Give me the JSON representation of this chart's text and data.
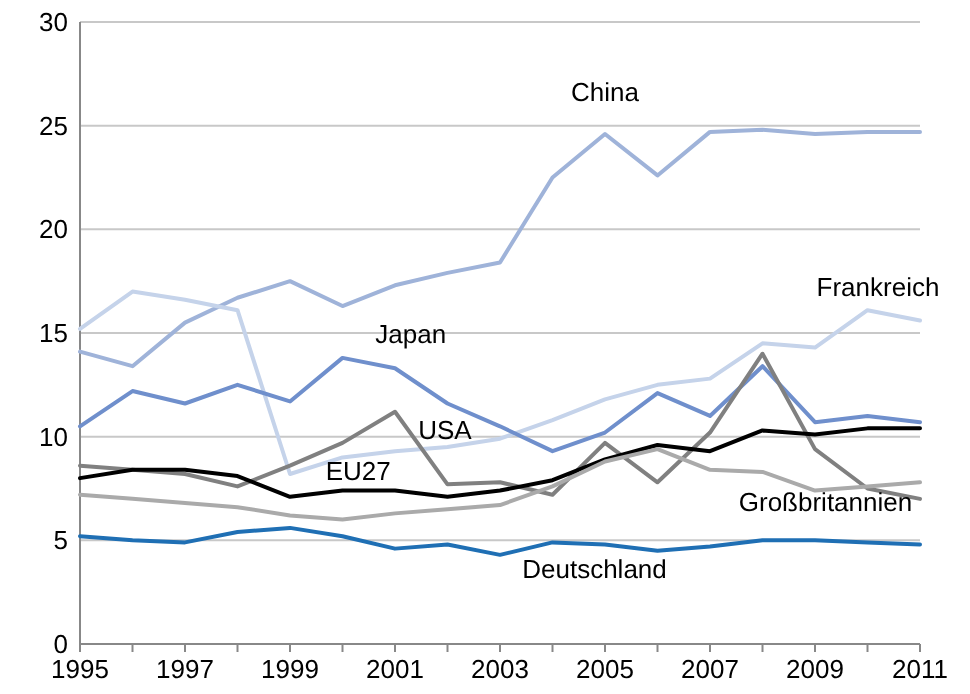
{
  "chart_data": {
    "type": "line",
    "x": [
      1995,
      1996,
      1997,
      1998,
      1999,
      2000,
      2001,
      2002,
      2003,
      2004,
      2005,
      2006,
      2007,
      2008,
      2009,
      2010,
      2011
    ],
    "series": [
      {
        "name": "China",
        "color": "#9fb3d9",
        "values": [
          14.1,
          13.4,
          15.5,
          16.7,
          17.5,
          16.3,
          17.3,
          17.9,
          18.4,
          22.5,
          24.6,
          22.6,
          24.7,
          24.8,
          24.6,
          24.7,
          24.7
        ]
      },
      {
        "name": "Frankreich",
        "color": "#c5d3ea",
        "values": [
          15.2,
          17.0,
          16.6,
          16.1,
          8.2,
          9.0,
          9.3,
          9.5,
          9.9,
          10.8,
          11.8,
          12.5,
          12.8,
          14.5,
          14.3,
          16.1,
          15.6
        ]
      },
      {
        "name": "Japan",
        "color": "#6f8fcc",
        "values": [
          10.5,
          12.2,
          11.6,
          12.5,
          11.7,
          13.8,
          13.3,
          11.6,
          10.5,
          9.3,
          10.2,
          12.1,
          11.0,
          13.4,
          10.7,
          11.0,
          10.7
        ]
      },
      {
        "name": "USA",
        "color": "#808080",
        "values": [
          8.6,
          8.4,
          8.2,
          7.6,
          8.6,
          9.7,
          11.2,
          7.7,
          7.8,
          7.2,
          9.7,
          7.8,
          10.2,
          14.0,
          9.4,
          7.5,
          7.0
        ]
      },
      {
        "name": "EU27",
        "color": "#000000",
        "values": [
          8.0,
          8.4,
          8.4,
          8.1,
          7.1,
          7.4,
          7.4,
          7.1,
          7.4,
          7.9,
          8.9,
          9.6,
          9.3,
          10.3,
          10.1,
          10.4,
          10.4
        ]
      },
      {
        "name": "Großbritannien",
        "color": "#aaaaaa",
        "values": [
          7.2,
          7.0,
          6.8,
          6.6,
          6.2,
          6.0,
          6.3,
          6.5,
          6.7,
          7.6,
          8.8,
          9.4,
          8.4,
          8.3,
          7.4,
          7.6,
          7.8
        ]
      },
      {
        "name": "Deutschland",
        "color": "#1f6fb4",
        "values": [
          5.2,
          5.0,
          4.9,
          5.4,
          5.6,
          5.2,
          4.6,
          4.8,
          4.3,
          4.9,
          4.8,
          4.5,
          4.7,
          5.0,
          5.0,
          4.9,
          4.8
        ]
      }
    ],
    "xlim": [
      1995,
      2011
    ],
    "xticks": [
      1995,
      {
        "value": 1996,
        "label": null
      },
      1997,
      {
        "value": 1998,
        "label": null
      },
      1999,
      {
        "value": 2000,
        "label": null
      },
      2001,
      {
        "value": 2002,
        "label": null
      },
      2003,
      {
        "value": 2004,
        "label": null
      },
      2005,
      {
        "value": 2006,
        "label": null
      },
      2007,
      {
        "value": 2008,
        "label": null
      },
      2009,
      {
        "value": 2010,
        "label": null
      },
      2011
    ],
    "ylim": [
      0,
      30
    ],
    "yticks": [
      0,
      5,
      10,
      15,
      20,
      25,
      30
    ],
    "grid": "y",
    "marker": "none",
    "line_style": "solid"
  }
}
